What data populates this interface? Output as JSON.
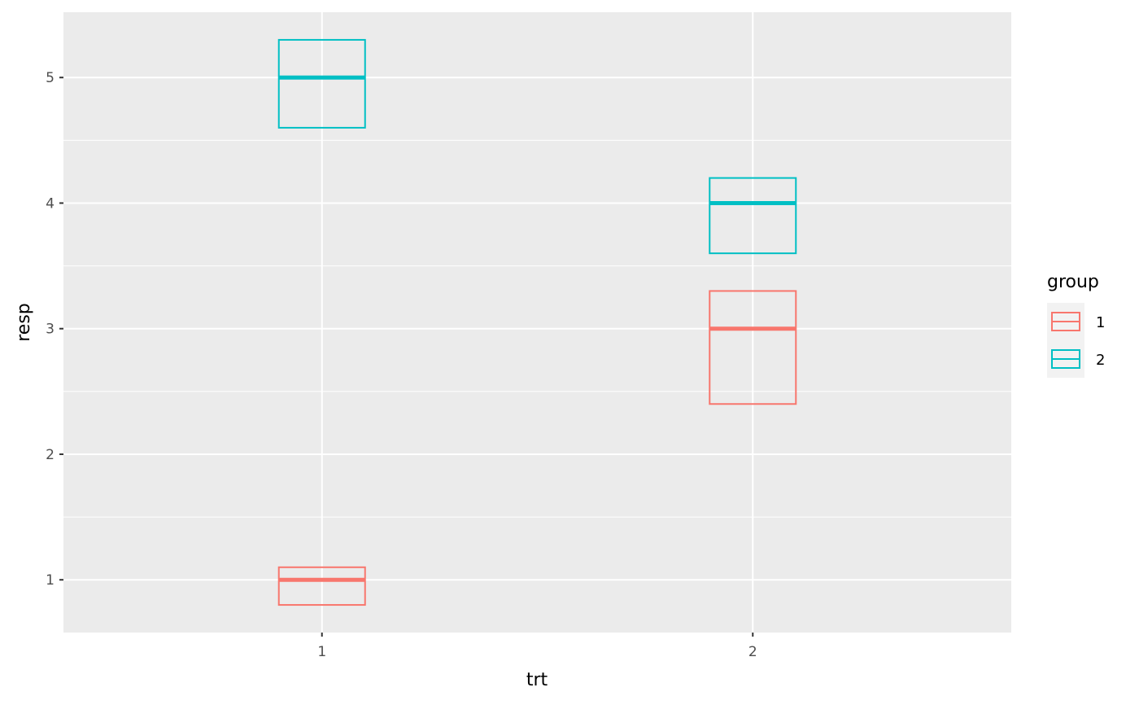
{
  "chart_data": {
    "type": "crossbar",
    "title": "",
    "xlabel": "trt",
    "ylabel": "resp",
    "x_categories": [
      "1",
      "2"
    ],
    "ylim": [
      0.58,
      5.52
    ],
    "y_ticks": [
      1,
      2,
      3,
      4,
      5
    ],
    "y_tick_labels": [
      "1",
      "2",
      "3",
      "4",
      "5"
    ],
    "grid": true,
    "legend": {
      "title": "group",
      "position": "right"
    },
    "series": [
      {
        "name": "1",
        "color": "#F8766D",
        "points": [
          {
            "x": "1",
            "y": 1,
            "lower": 0.8,
            "upper": 1.1
          },
          {
            "x": "2",
            "y": 3,
            "lower": 2.4,
            "upper": 3.3
          }
        ]
      },
      {
        "name": "2",
        "color": "#00BFC4",
        "points": [
          {
            "x": "1",
            "y": 5,
            "lower": 4.6,
            "upper": 5.3
          },
          {
            "x": "2",
            "y": 4,
            "lower": 3.6,
            "upper": 4.2
          }
        ]
      }
    ],
    "panel_background": "#EBEBEB",
    "grid_color": "#FFFFFF"
  }
}
